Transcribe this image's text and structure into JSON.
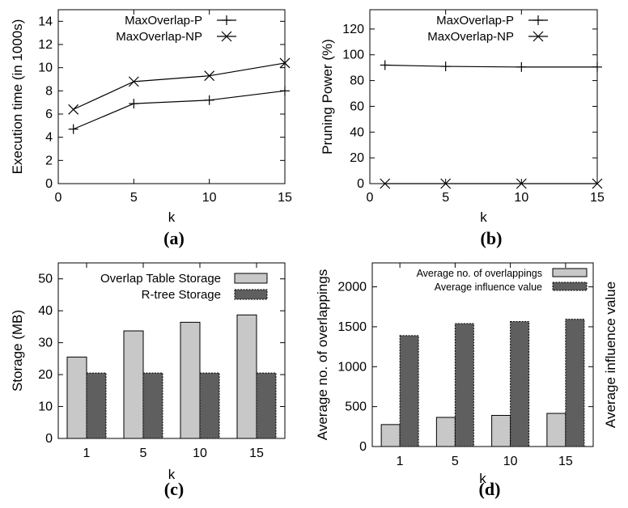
{
  "chart_data": [
    {
      "panel": "a",
      "type": "line",
      "caption": "(a)",
      "xlabel": "k",
      "ylabel": "Execution time (in 1000s)",
      "x": [
        1,
        5,
        10,
        15
      ],
      "xlim": [
        0,
        15
      ],
      "ylim": [
        0,
        15
      ],
      "xticks": [
        "0",
        "5",
        "10",
        "15"
      ],
      "yticks": [
        "0",
        "2",
        "4",
        "6",
        "8",
        "10",
        "12",
        "14"
      ],
      "legend_position": "top-right",
      "series": [
        {
          "name": "MaxOverlap-P",
          "marker": "plus",
          "values": [
            4.7,
            6.9,
            7.2,
            8.0
          ]
        },
        {
          "name": "MaxOverlap-NP",
          "marker": "cross",
          "values": [
            6.4,
            8.8,
            9.3,
            10.4
          ]
        }
      ]
    },
    {
      "panel": "b",
      "type": "line",
      "caption": "(b)",
      "xlabel": "k",
      "ylabel": "Pruning Power (%)",
      "x": [
        1,
        5,
        10,
        15
      ],
      "xlim": [
        0,
        15
      ],
      "ylim": [
        0,
        135
      ],
      "xticks": [
        "0",
        "5",
        "10",
        "15"
      ],
      "yticks": [
        "0",
        "20",
        "40",
        "60",
        "80",
        "100",
        "120"
      ],
      "legend_position": "top-right",
      "series": [
        {
          "name": "MaxOverlap-P",
          "marker": "plus",
          "values": [
            92,
            91,
            90.5,
            90.5
          ]
        },
        {
          "name": "MaxOverlap-NP",
          "marker": "cross",
          "values": [
            0,
            0,
            0,
            0
          ]
        }
      ]
    },
    {
      "panel": "c",
      "type": "bar",
      "caption": "(c)",
      "xlabel": "k",
      "ylabel": "Storage (MB)",
      "categories": [
        "1",
        "5",
        "10",
        "15"
      ],
      "ylim": [
        0,
        55
      ],
      "yticks": [
        "0",
        "10",
        "20",
        "30",
        "40",
        "50"
      ],
      "legend_position": "top-right",
      "series": [
        {
          "name": "Overlap Table Storage",
          "color": "#c8c8c8",
          "values": [
            25.5,
            33.7,
            36.4,
            38.7
          ]
        },
        {
          "name": "R-tree Storage",
          "color": "#5f5f5f",
          "values": [
            20.5,
            20.5,
            20.5,
            20.5
          ]
        }
      ]
    },
    {
      "panel": "d",
      "type": "bar",
      "caption": "(d)",
      "xlabel": "k",
      "ylabel": "Average no. of overlappings",
      "y2label": "Average influence value",
      "categories": [
        "1",
        "5",
        "10",
        "15"
      ],
      "ylim": [
        0,
        2300
      ],
      "yticks": [
        "0",
        "500",
        "1000",
        "1500",
        "2000"
      ],
      "legend_position": "top-right",
      "series": [
        {
          "name": "Average no. of overlappings",
          "color": "#c8c8c8",
          "values": [
            275,
            365,
            390,
            415
          ]
        },
        {
          "name": "Average influence value",
          "color": "#5f5f5f",
          "values": [
            1390,
            1540,
            1565,
            1595
          ]
        }
      ]
    }
  ]
}
